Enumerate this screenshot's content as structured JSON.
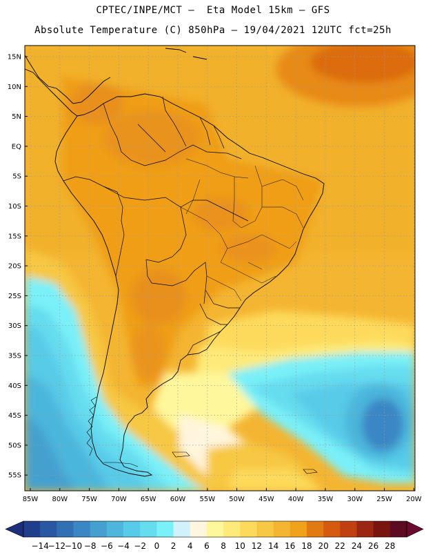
{
  "header": {
    "line1": "CPTEC/INPE/MCT –  Eta Model 15km – GFS",
    "line2": "Absolute Temperature (C) 850hPa – 19/04/2021 12UTC fct=25h"
  },
  "map": {
    "lat_labels": [
      "15N",
      "10N",
      "5N",
      "EQ",
      "5S",
      "10S",
      "15S",
      "20S",
      "25S",
      "30S",
      "35S",
      "40S",
      "45S",
      "50S",
      "55S"
    ],
    "lon_labels": [
      "85W",
      "80W",
      "75W",
      "70W",
      "65W",
      "60W",
      "55W",
      "50W",
      "45W",
      "40W",
      "35W",
      "30W",
      "25W",
      "20W"
    ]
  },
  "colorbar": {
    "labels": [
      "-14",
      "-12",
      "-10",
      "-8",
      "-6",
      "-4",
      "-2",
      "0",
      "2",
      "4",
      "6",
      "8",
      "10",
      "12",
      "14",
      "16",
      "18",
      "20",
      "22",
      "24",
      "26",
      "28"
    ],
    "colors": [
      "#1f3f8c",
      "#2957a2",
      "#3170b4",
      "#3b86c4",
      "#45a0cf",
      "#4cb6dc",
      "#58cbe8",
      "#66dcef",
      "#7af0f8",
      "#d2f2fb",
      "#fff6de",
      "#fff79b",
      "#feea78",
      "#fdda5b",
      "#f7c843",
      "#f4b531",
      "#f0a21b",
      "#e27a13",
      "#d45a0e",
      "#bf4011",
      "#9b2611",
      "#7a1410",
      "#5c0b22"
    ],
    "left_arrow": "#1c2f7a",
    "right_arrow": "#6b0a2e"
  }
}
